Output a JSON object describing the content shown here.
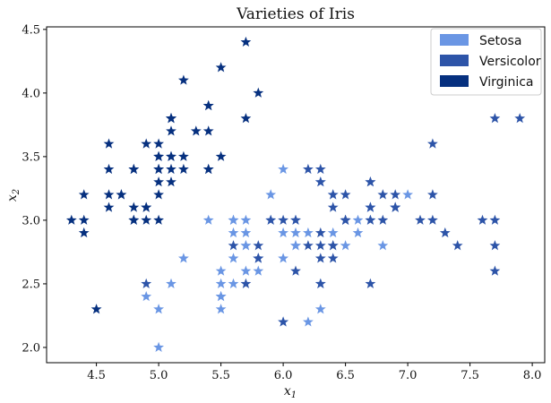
{
  "chart_data": {
    "type": "scatter",
    "title": "Varieties of Iris",
    "xlabel": "x",
    "xlabel_sub": "1",
    "ylabel": "x",
    "ylabel_sub": "2",
    "xlim": [
      4.1,
      8.1
    ],
    "ylim": [
      1.88,
      4.52
    ],
    "xticks": [
      4.5,
      5.0,
      5.5,
      6.0,
      6.5,
      7.0,
      7.5,
      8.0
    ],
    "xtick_labels": [
      "4.5",
      "5.0",
      "5.5",
      "6.0",
      "6.5",
      "7.0",
      "7.5",
      "8.0"
    ],
    "yticks": [
      2.0,
      2.5,
      3.0,
      3.5,
      4.0,
      4.5
    ],
    "ytick_labels": [
      "2.0",
      "2.5",
      "3.0",
      "3.5",
      "4.0",
      "4.5"
    ],
    "grid": false,
    "legend_position": "top-right",
    "marker": "star",
    "series": [
      {
        "name": "Setosa",
        "color": "#6a96e4",
        "points": [
          [
            7.0,
            3.2
          ],
          [
            6.4,
            3.2
          ],
          [
            6.9,
            3.1
          ],
          [
            5.5,
            2.3
          ],
          [
            6.5,
            2.8
          ],
          [
            5.7,
            2.8
          ],
          [
            6.3,
            3.3
          ],
          [
            4.9,
            2.4
          ],
          [
            6.6,
            2.9
          ],
          [
            5.2,
            2.7
          ],
          [
            5.0,
            2.0
          ],
          [
            5.9,
            3.0
          ],
          [
            6.0,
            2.2
          ],
          [
            6.1,
            2.9
          ],
          [
            5.6,
            2.9
          ],
          [
            6.7,
            3.1
          ],
          [
            5.6,
            3.0
          ],
          [
            5.8,
            2.7
          ],
          [
            6.2,
            2.2
          ],
          [
            5.6,
            2.5
          ],
          [
            5.9,
            3.2
          ],
          [
            6.1,
            2.8
          ],
          [
            6.3,
            2.5
          ],
          [
            6.1,
            2.8
          ],
          [
            6.4,
            2.9
          ],
          [
            6.6,
            3.0
          ],
          [
            6.8,
            2.8
          ],
          [
            6.7,
            3.0
          ],
          [
            6.0,
            2.9
          ],
          [
            5.7,
            2.6
          ],
          [
            5.5,
            2.4
          ],
          [
            5.5,
            2.4
          ],
          [
            5.8,
            2.7
          ],
          [
            6.0,
            2.7
          ],
          [
            5.4,
            3.0
          ],
          [
            6.0,
            3.4
          ],
          [
            6.7,
            3.1
          ],
          [
            6.3,
            2.3
          ],
          [
            5.6,
            3.0
          ],
          [
            5.5,
            2.5
          ],
          [
            5.5,
            2.6
          ],
          [
            6.1,
            3.0
          ],
          [
            5.8,
            2.6
          ],
          [
            5.0,
            2.3
          ],
          [
            5.6,
            2.7
          ],
          [
            5.7,
            3.0
          ],
          [
            5.7,
            2.9
          ],
          [
            6.2,
            2.9
          ],
          [
            5.1,
            2.5
          ],
          [
            5.7,
            2.8
          ]
        ]
      },
      {
        "name": "Versicolor",
        "color": "#2d54a8",
        "points": [
          [
            6.3,
            3.3
          ],
          [
            5.8,
            2.7
          ],
          [
            7.1,
            3.0
          ],
          [
            6.3,
            2.9
          ],
          [
            6.5,
            3.0
          ],
          [
            7.6,
            3.0
          ],
          [
            4.9,
            2.5
          ],
          [
            7.3,
            2.9
          ],
          [
            6.7,
            2.5
          ],
          [
            7.2,
            3.6
          ],
          [
            6.5,
            3.2
          ],
          [
            6.4,
            2.7
          ],
          [
            6.8,
            3.0
          ],
          [
            5.7,
            2.5
          ],
          [
            5.8,
            2.8
          ],
          [
            6.4,
            3.2
          ],
          [
            6.5,
            3.0
          ],
          [
            7.7,
            3.8
          ],
          [
            7.7,
            2.6
          ],
          [
            6.0,
            2.2
          ],
          [
            6.9,
            3.2
          ],
          [
            5.6,
            2.8
          ],
          [
            7.7,
            2.8
          ],
          [
            6.3,
            2.7
          ],
          [
            6.7,
            3.3
          ],
          [
            7.2,
            3.2
          ],
          [
            6.2,
            2.8
          ],
          [
            6.1,
            3.0
          ],
          [
            6.4,
            2.8
          ],
          [
            7.2,
            3.0
          ],
          [
            7.4,
            2.8
          ],
          [
            7.9,
            3.8
          ],
          [
            6.4,
            2.8
          ],
          [
            6.3,
            2.8
          ],
          [
            6.1,
            2.6
          ],
          [
            7.7,
            3.0
          ],
          [
            6.3,
            3.4
          ],
          [
            6.4,
            3.1
          ],
          [
            6.0,
            3.0
          ],
          [
            6.9,
            3.1
          ],
          [
            6.7,
            3.1
          ],
          [
            6.9,
            3.1
          ],
          [
            5.8,
            2.7
          ],
          [
            6.8,
            3.2
          ],
          [
            6.7,
            3.3
          ],
          [
            6.7,
            3.0
          ],
          [
            6.3,
            2.5
          ],
          [
            6.5,
            3.0
          ],
          [
            6.2,
            3.4
          ],
          [
            5.9,
            3.0
          ]
        ]
      },
      {
        "name": "Virginica",
        "color": "#06307f",
        "points": [
          [
            5.1,
            3.5
          ],
          [
            4.9,
            3.0
          ],
          [
            4.7,
            3.2
          ],
          [
            4.6,
            3.1
          ],
          [
            5.0,
            3.6
          ],
          [
            5.4,
            3.9
          ],
          [
            4.6,
            3.4
          ],
          [
            5.0,
            3.4
          ],
          [
            4.4,
            2.9
          ],
          [
            4.9,
            3.1
          ],
          [
            5.4,
            3.7
          ],
          [
            4.8,
            3.4
          ],
          [
            4.8,
            3.0
          ],
          [
            4.3,
            3.0
          ],
          [
            5.8,
            4.0
          ],
          [
            5.7,
            4.4
          ],
          [
            5.4,
            3.9
          ],
          [
            5.1,
            3.5
          ],
          [
            5.7,
            3.8
          ],
          [
            5.1,
            3.8
          ],
          [
            5.4,
            3.4
          ],
          [
            5.1,
            3.7
          ],
          [
            4.6,
            3.6
          ],
          [
            5.1,
            3.3
          ],
          [
            4.8,
            3.4
          ],
          [
            5.0,
            3.0
          ],
          [
            5.0,
            3.4
          ],
          [
            5.2,
            3.5
          ],
          [
            5.2,
            3.4
          ],
          [
            4.7,
            3.2
          ],
          [
            4.8,
            3.1
          ],
          [
            5.4,
            3.4
          ],
          [
            5.2,
            4.1
          ],
          [
            5.5,
            4.2
          ],
          [
            4.9,
            3.1
          ],
          [
            5.0,
            3.2
          ],
          [
            5.5,
            3.5
          ],
          [
            4.9,
            3.6
          ],
          [
            4.4,
            3.0
          ],
          [
            5.1,
            3.4
          ],
          [
            5.0,
            3.5
          ],
          [
            4.5,
            2.3
          ],
          [
            4.4,
            3.2
          ],
          [
            5.0,
            3.5
          ],
          [
            5.1,
            3.8
          ],
          [
            4.8,
            3.0
          ],
          [
            5.1,
            3.8
          ],
          [
            4.6,
            3.2
          ],
          [
            5.3,
            3.7
          ],
          [
            5.0,
            3.3
          ]
        ]
      }
    ]
  }
}
